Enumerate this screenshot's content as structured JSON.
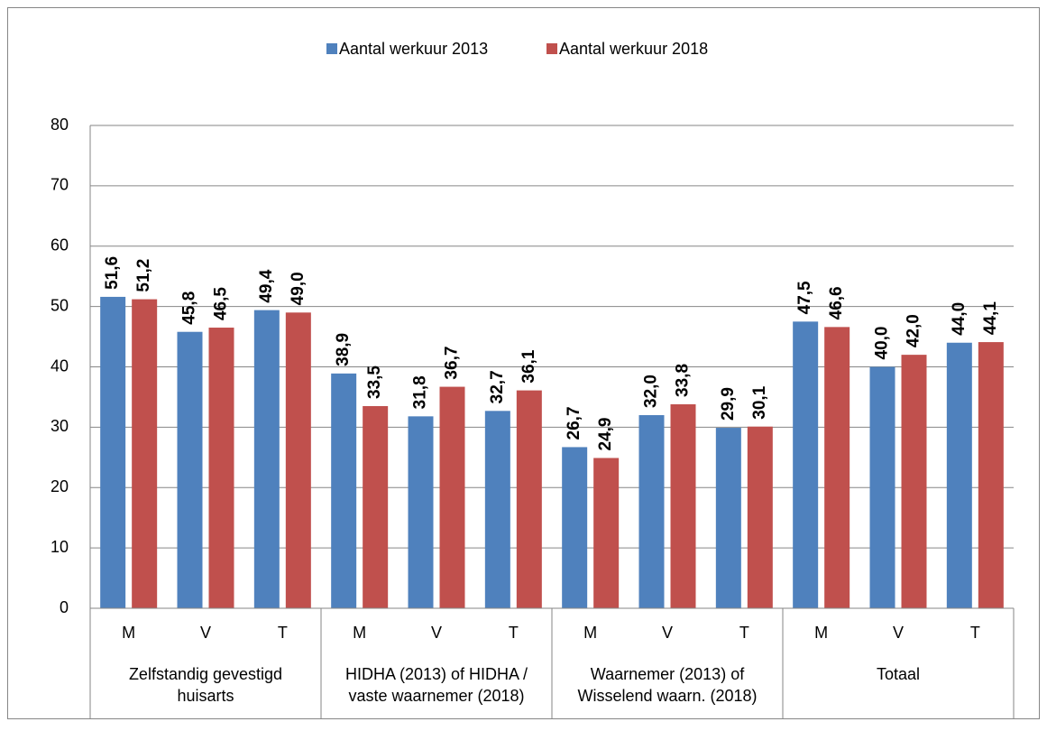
{
  "chart_data": {
    "type": "bar",
    "categories": [
      "M",
      "V",
      "T",
      "M",
      "V",
      "T",
      "M",
      "V",
      "T",
      "M",
      "V",
      "T"
    ],
    "groups": [
      {
        "label_lines": [
          "Zelfstandig gevestigd",
          "huisarts"
        ]
      },
      {
        "label_lines": [
          "HIDHA (2013) of HIDHA /",
          "vaste waarnemer (2018)"
        ]
      },
      {
        "label_lines": [
          "Waarnemer (2013) of",
          "Wisselend waarn. (2018)"
        ]
      },
      {
        "label_lines": [
          "Totaal"
        ]
      }
    ],
    "series": [
      {
        "name": "Aantal werkuur 2013",
        "color": "#4f81bd",
        "values": [
          51.6,
          45.8,
          49.4,
          38.9,
          31.8,
          32.7,
          26.7,
          32.0,
          29.9,
          47.5,
          40.0,
          44.0
        ],
        "value_labels": [
          "51,6",
          "45,8",
          "49,4",
          "38,9",
          "31,8",
          "32,7",
          "26,7",
          "32,0",
          "29,9",
          "47,5",
          "40,0",
          "44,0"
        ]
      },
      {
        "name": "Aantal werkuur 2018",
        "color": "#c0504d",
        "values": [
          51.2,
          46.5,
          49.0,
          33.5,
          36.7,
          36.1,
          24.9,
          33.8,
          30.1,
          46.6,
          42.0,
          44.1
        ],
        "value_labels": [
          "51,2",
          "46,5",
          "49,0",
          "33,5",
          "36,7",
          "36,1",
          "24,9",
          "33,8",
          "30,1",
          "46,6",
          "42,0",
          "44,1"
        ]
      }
    ],
    "ylim": [
      0,
      80
    ],
    "yticks": [
      0,
      10,
      20,
      30,
      40,
      50,
      60,
      70,
      80
    ],
    "grid": true,
    "legend": "top"
  }
}
